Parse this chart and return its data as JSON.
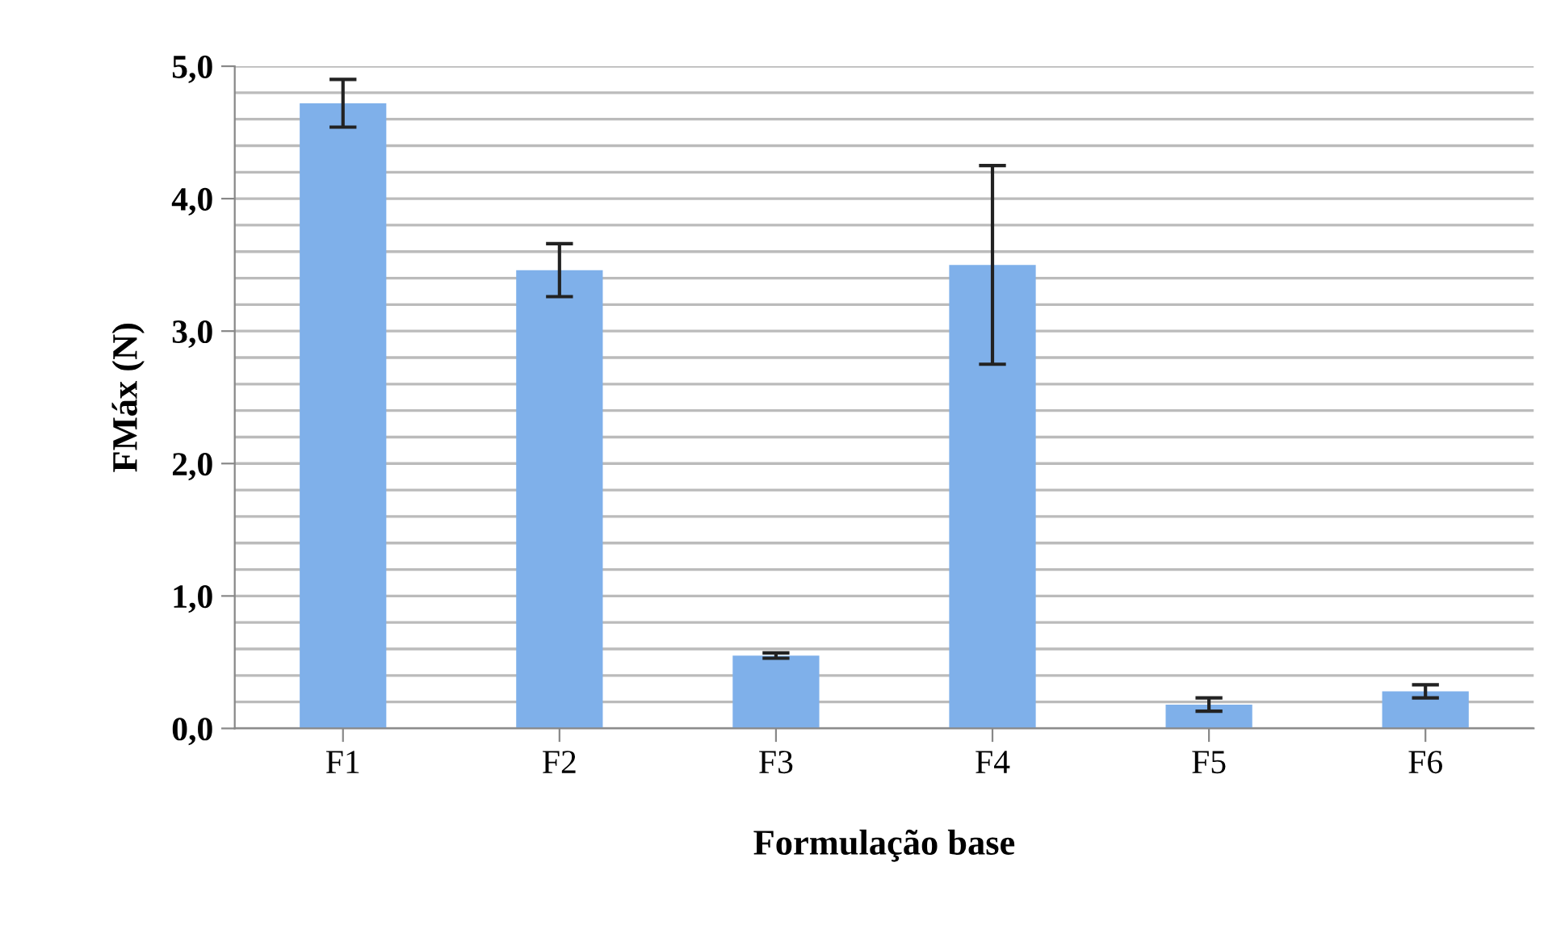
{
  "chart_data": {
    "type": "bar",
    "xlabel": "Formulação base",
    "ylabel": "FMáx (N)",
    "categories": [
      "F1",
      "F2",
      "F3",
      "F4",
      "F5",
      "F6"
    ],
    "values": [
      4.72,
      3.46,
      0.55,
      3.5,
      0.18,
      0.28
    ],
    "errors": [
      0.18,
      0.2,
      0.02,
      0.75,
      0.05,
      0.05
    ],
    "color": "#7fb0ea",
    "ylim": [
      0,
      5
    ],
    "yticks": [
      {
        "value": 0,
        "label": "0,0"
      },
      {
        "value": 0.2,
        "label": null
      },
      {
        "value": 0.4,
        "label": null
      },
      {
        "value": 0.6,
        "label": null
      },
      {
        "value": 0.8,
        "label": null
      },
      {
        "value": 1,
        "label": "1,0"
      },
      {
        "value": 1.2,
        "label": null
      },
      {
        "value": 1.4,
        "label": null
      },
      {
        "value": 1.6,
        "label": null
      },
      {
        "value": 1.8,
        "label": null
      },
      {
        "value": 2,
        "label": "2,0"
      },
      {
        "value": 2.2,
        "label": null
      },
      {
        "value": 2.4,
        "label": null
      },
      {
        "value": 2.6,
        "label": null
      },
      {
        "value": 2.8,
        "label": null
      },
      {
        "value": 3,
        "label": "3,0"
      },
      {
        "value": 3.2,
        "label": null
      },
      {
        "value": 3.4,
        "label": null
      },
      {
        "value": 3.6,
        "label": null
      },
      {
        "value": 3.8,
        "label": null
      },
      {
        "value": 4,
        "label": "4,0"
      },
      {
        "value": 4.2,
        "label": null
      },
      {
        "value": 4.4,
        "label": null
      },
      {
        "value": 4.6,
        "label": null
      },
      {
        "value": 4.8,
        "label": null
      },
      {
        "value": 5,
        "label": "5,0"
      }
    ],
    "grid": "y"
  }
}
